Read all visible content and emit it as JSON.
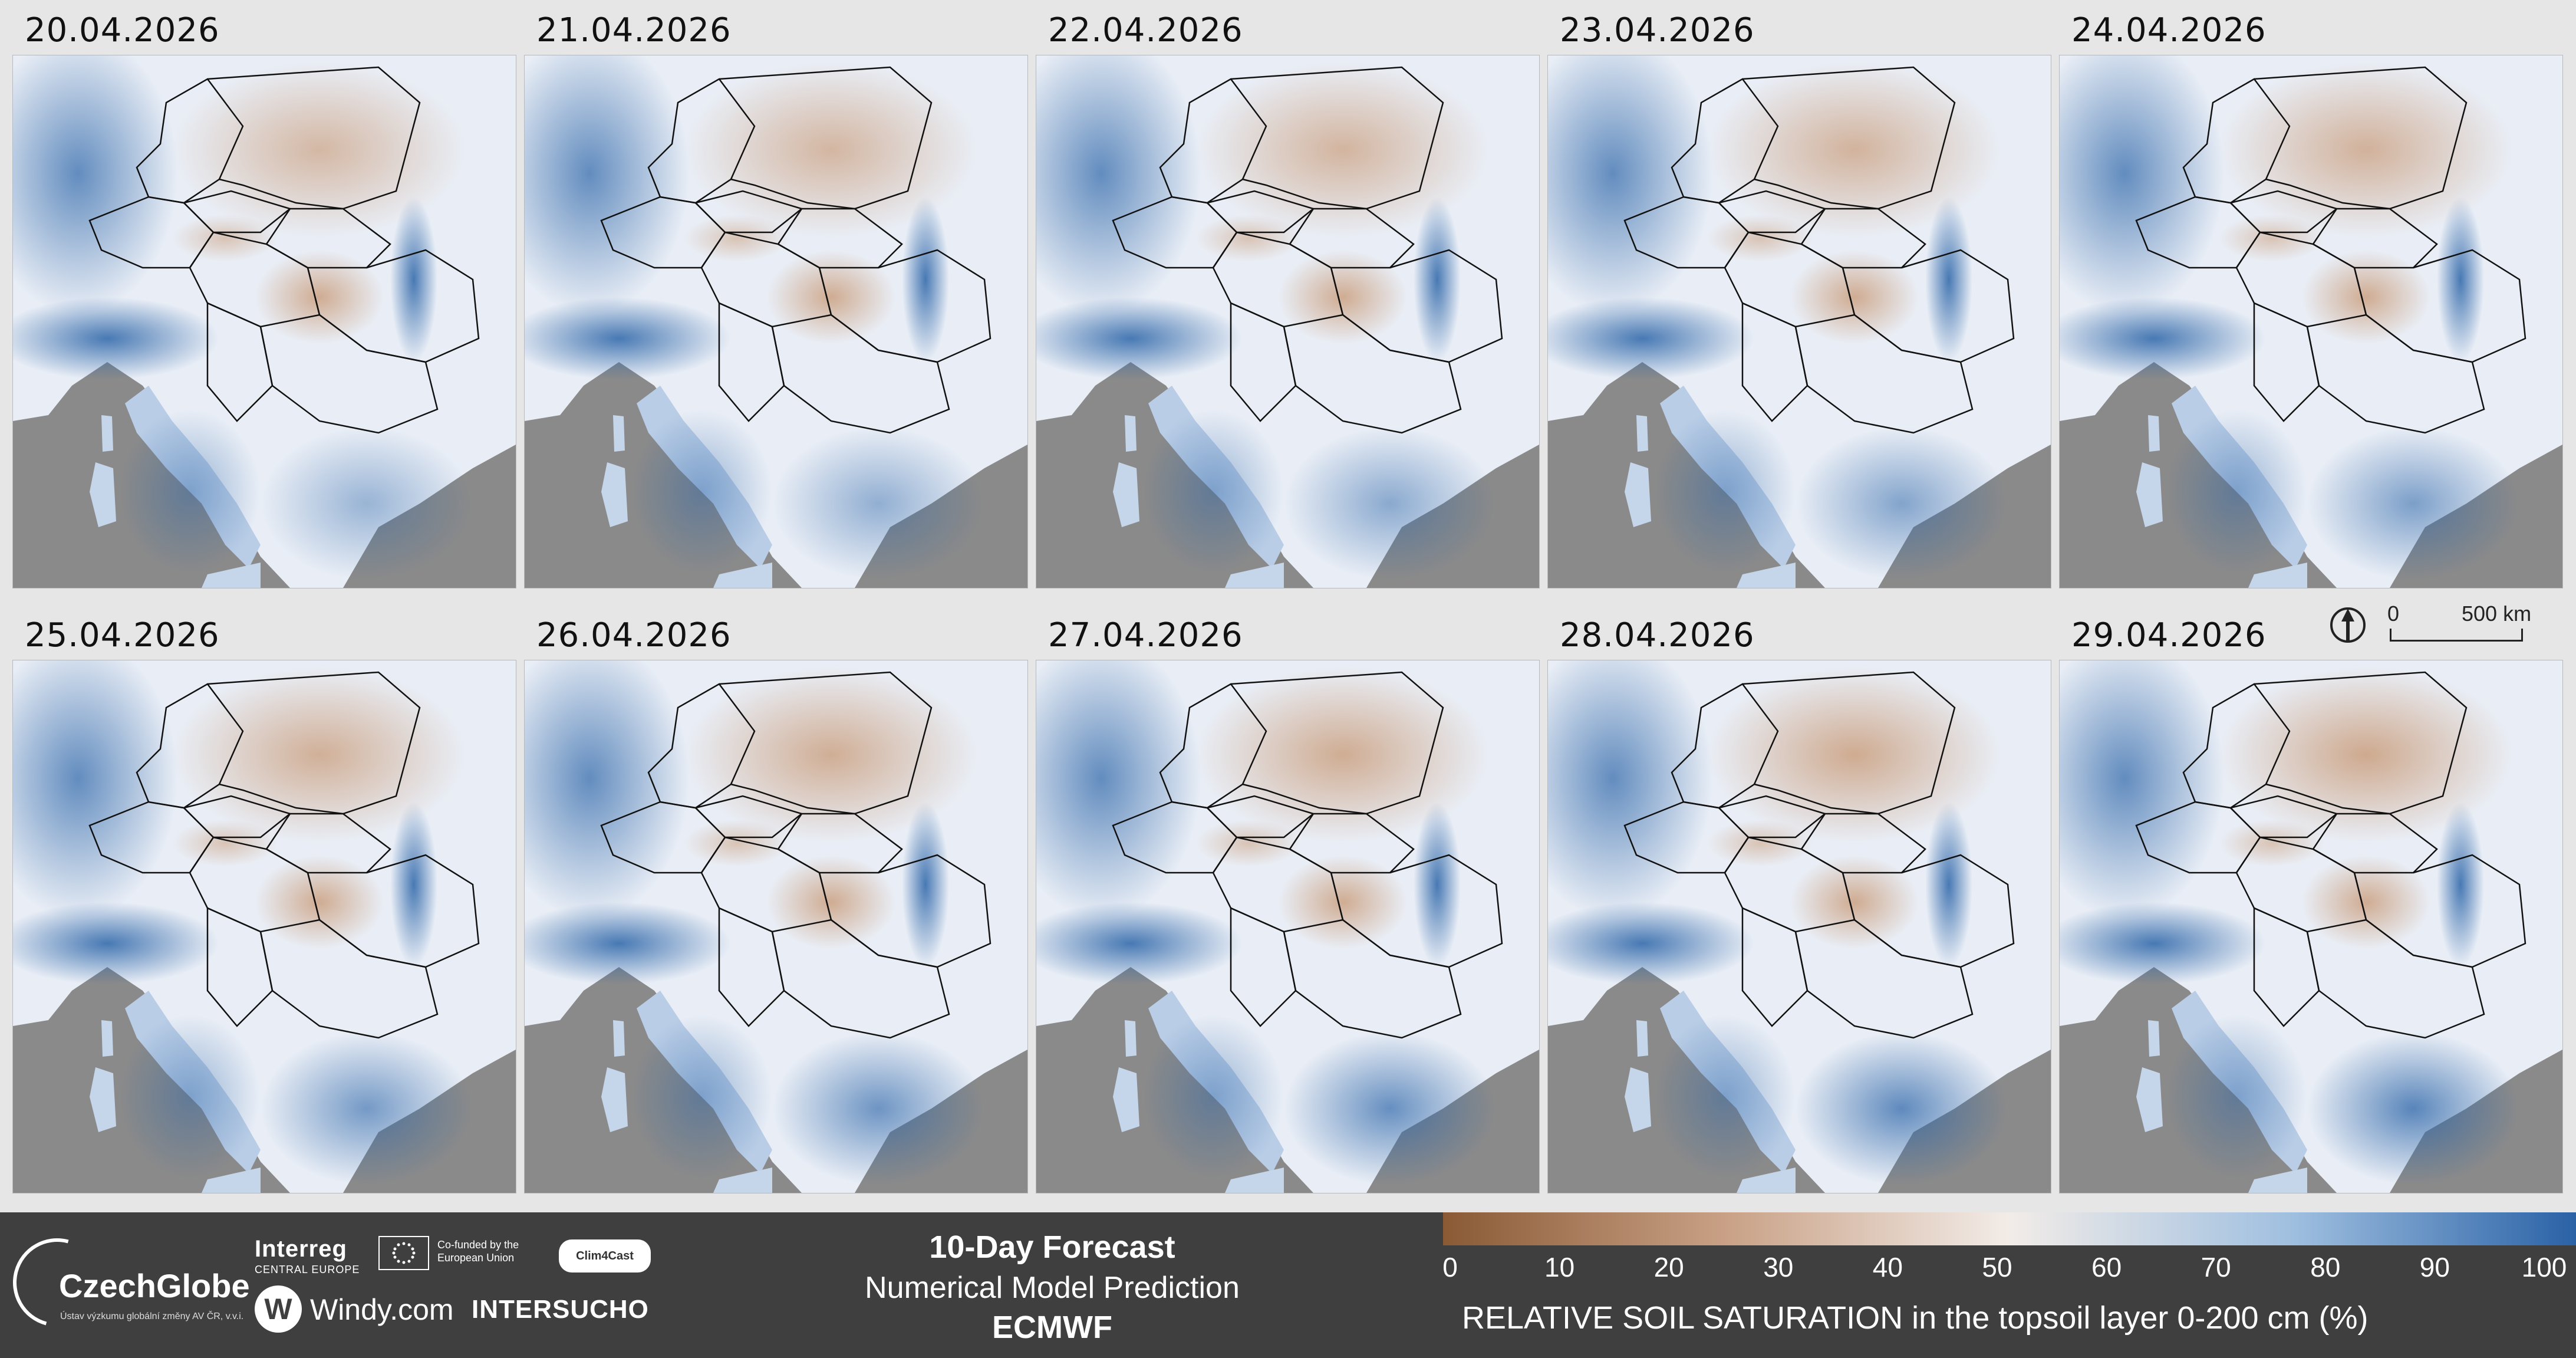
{
  "panels": [
    {
      "date": "20.04.2026"
    },
    {
      "date": "21.04.2026"
    },
    {
      "date": "22.04.2026"
    },
    {
      "date": "23.04.2026"
    },
    {
      "date": "24.04.2026"
    },
    {
      "date": "25.04.2026"
    },
    {
      "date": "26.04.2026"
    },
    {
      "date": "27.04.2026"
    },
    {
      "date": "28.04.2026"
    },
    {
      "date": "29.04.2026"
    }
  ],
  "scale": {
    "zero": "0",
    "distance": "500 km"
  },
  "footer": {
    "czechglobe": {
      "name": "CzechGlobe",
      "subtitle": "Ústav výzkumu globální změny AV ČR, v.v.i."
    },
    "interreg": {
      "name": "Interreg",
      "region": "CENTRAL EUROPE"
    },
    "eu": {
      "text": "Co-funded by the European Union"
    },
    "clim4cast": "Clim4Cast",
    "windy": {
      "name": "Windy.com",
      "letter": "W"
    },
    "intersucho": "INTERSUCHO",
    "forecast": {
      "title": "10-Day Forecast",
      "subtitle": "Numerical Model Prediction",
      "model": "ECMWF"
    },
    "colorbar": {
      "ticks": [
        "0",
        "10",
        "20",
        "30",
        "40",
        "50",
        "60",
        "70",
        "80",
        "90",
        "100"
      ],
      "label": "RELATIVE SOIL SATURATION in the topsoil layer 0-200 cm (%)",
      "colors": [
        "#8a5a35",
        "#c9a186",
        "#f2ece8",
        "#9fbfe0",
        "#2a62a6"
      ]
    }
  },
  "map_colors": {
    "sea": "#8a8a8a",
    "dry": "#c99c7a",
    "neutral": "#e9eef6",
    "wet": "#2c65a8"
  }
}
